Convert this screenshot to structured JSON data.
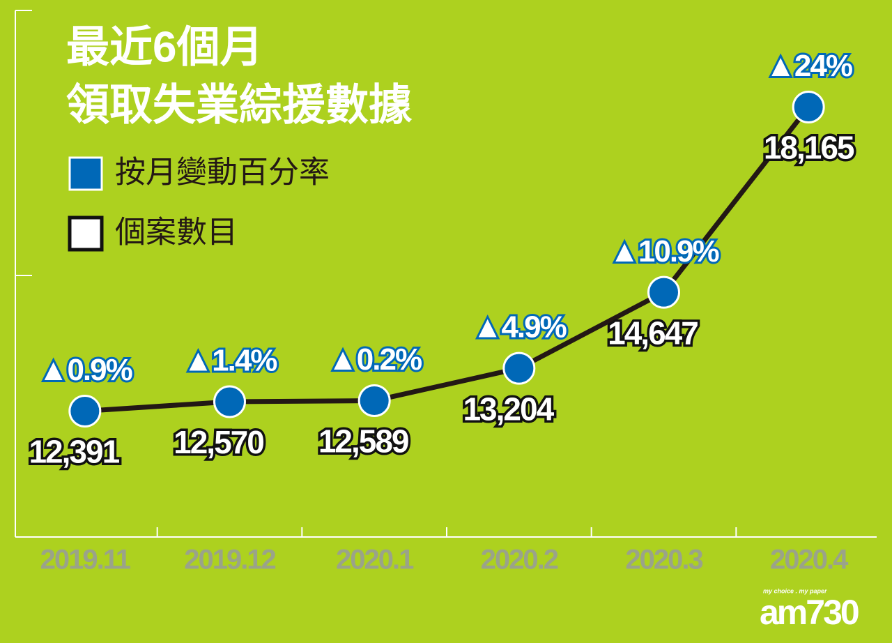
{
  "chart_data": {
    "type": "line",
    "title": [
      "最近6個月",
      "領取失業綜援數據"
    ],
    "categories": [
      "2019.11",
      "2019.12",
      "2020.1",
      "2020.2",
      "2020.3",
      "2020.4"
    ],
    "series": [
      {
        "name": "個案數目",
        "color": "#231815",
        "values": [
          12391,
          12570,
          12589,
          13204,
          14647,
          18165
        ],
        "value_labels": [
          "12,391",
          "12,570",
          "12,589",
          "13,204",
          "14,647",
          "18,165"
        ]
      },
      {
        "name": "按月變動百分率",
        "color": "#0068b7",
        "values": [
          0.9,
          1.4,
          0.2,
          4.9,
          10.9,
          24
        ],
        "value_labels": [
          "▲0.9%",
          "▲1.4%",
          "▲0.2%",
          "▲4.9%",
          "▲10.9%",
          "▲24%"
        ]
      }
    ],
    "ylim": [
      10000,
      20000
    ],
    "logo": {
      "text": "am730",
      "tagline": "my choice . my paper"
    }
  }
}
